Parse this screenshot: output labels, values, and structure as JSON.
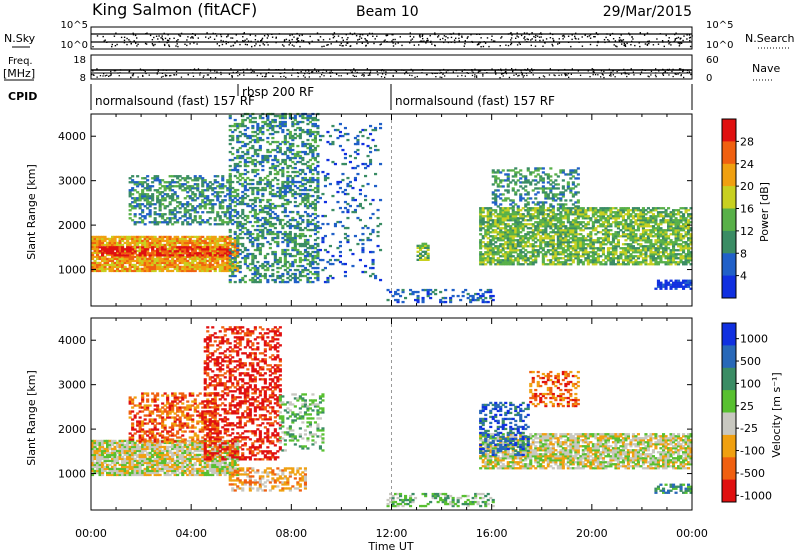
{
  "header": {
    "station": "King Salmon (fitACF)",
    "beam": "Beam 10",
    "date": "29/Mar/2015"
  },
  "strips": {
    "nsky": {
      "label": "N.Sky",
      "ticks": [
        "10^5",
        "10^0"
      ]
    },
    "nsearch": {
      "label": "N.Search",
      "ticks": [
        "10^5",
        "10^0"
      ]
    },
    "freq": {
      "label_line1": "Freq.",
      "label_line2": "[MHz]",
      "ticks": [
        "18",
        "8"
      ]
    },
    "nave": {
      "label": "Nave",
      "ticks": [
        "60",
        "0"
      ]
    },
    "cpid": {
      "label": "CPID",
      "segments": [
        {
          "text": "normalsound (fast) 157 RF",
          "start_h": 0.0
        },
        {
          "text": "rbsp 200 RF",
          "start_h": 6.0
        },
        {
          "text": "normalsound (fast) 157 RF",
          "start_h": 12.0
        }
      ]
    }
  },
  "chart_data": [
    {
      "type": "heatmap",
      "name": "power",
      "ylabel": "Slant Range [km]",
      "xlabel": "Time UT",
      "xlim_hours": [
        0,
        24
      ],
      "ylim_km": [
        180,
        4500
      ],
      "x_ticks": [
        "00:00",
        "04:00",
        "08:00",
        "12:00",
        "16:00",
        "20:00",
        "00:00"
      ],
      "y_ticks": [
        1000,
        2000,
        3000,
        4000
      ],
      "colorbar": {
        "label": "Power [dB]",
        "ticks": [
          "4",
          "8",
          "12",
          "16",
          "20",
          "24",
          "28"
        ],
        "colors": [
          "#1030e0",
          "#2060c8",
          "#3a8c64",
          "#58b048",
          "#c8d020",
          "#f0a010",
          "#f06010",
          "#e01010"
        ]
      },
      "regions": [
        {
          "t0": 0.0,
          "t1": 5.8,
          "r0": 950,
          "r1": 1750,
          "level": 5,
          "density": 0.85
        },
        {
          "t0": 0.3,
          "t1": 5.5,
          "r0": 1300,
          "r1": 1500,
          "level": 7,
          "density": 0.6
        },
        {
          "t0": 1.5,
          "t1": 5.5,
          "r0": 2000,
          "r1": 3100,
          "level": 2,
          "density": 0.5
        },
        {
          "t0": 5.5,
          "t1": 9.0,
          "r0": 700,
          "r1": 4500,
          "level": 2,
          "density": 0.45
        },
        {
          "t0": 9.0,
          "t1": 11.5,
          "r0": 700,
          "r1": 4300,
          "level": 1,
          "density": 0.12
        },
        {
          "t0": 13.0,
          "t1": 13.4,
          "r0": 1200,
          "r1": 1600,
          "level": 3,
          "density": 0.7
        },
        {
          "t0": 11.8,
          "t1": 16.0,
          "r0": 250,
          "r1": 550,
          "level": 1,
          "density": 0.35
        },
        {
          "t0": 15.5,
          "t1": 24.0,
          "r0": 1100,
          "r1": 2400,
          "level": 3,
          "density": 0.75
        },
        {
          "t0": 16.0,
          "t1": 19.5,
          "r0": 2400,
          "r1": 3300,
          "level": 2,
          "density": 0.4
        },
        {
          "t0": 22.5,
          "t1": 24.0,
          "r0": 550,
          "r1": 750,
          "level": 0,
          "density": 0.7
        }
      ]
    },
    {
      "type": "heatmap",
      "name": "velocity",
      "ylabel": "Slant Range [km]",
      "xlabel": "Time UT",
      "xlim_hours": [
        0,
        24
      ],
      "ylim_km": [
        180,
        4500
      ],
      "x_ticks": [
        "00:00",
        "04:00",
        "08:00",
        "12:00",
        "16:00",
        "20:00",
        "00:00"
      ],
      "y_ticks": [
        1000,
        2000,
        3000,
        4000
      ],
      "colorbar": {
        "label": "Velocity [m s⁻¹]",
        "ticks": [
          "1000",
          "500",
          "100",
          "25",
          "-25",
          "-100",
          "-500",
          "-1000"
        ],
        "colors": [
          "#1030e0",
          "#2868b8",
          "#3a8c64",
          "#58c030",
          "#c8c8c0",
          "#f0a010",
          "#f06010",
          "#e01010"
        ]
      },
      "regions": [
        {
          "t0": 0.0,
          "t1": 5.8,
          "r0": 950,
          "r1": 1750,
          "level": 4,
          "density": 0.85
        },
        {
          "t0": 1.5,
          "t1": 5.0,
          "r0": 1700,
          "r1": 2800,
          "level": 6,
          "density": 0.5
        },
        {
          "t0": 4.5,
          "t1": 7.5,
          "r0": 1300,
          "r1": 4300,
          "level": 7,
          "density": 0.45
        },
        {
          "t0": 5.5,
          "t1": 8.5,
          "r0": 600,
          "r1": 1100,
          "level": 5,
          "density": 0.45
        },
        {
          "t0": 7.5,
          "t1": 9.2,
          "r0": 1500,
          "r1": 2800,
          "level": 3,
          "density": 0.35
        },
        {
          "t0": 11.8,
          "t1": 16.0,
          "r0": 250,
          "r1": 550,
          "level": 3,
          "density": 0.4
        },
        {
          "t0": 15.5,
          "t1": 24.0,
          "r0": 1100,
          "r1": 1900,
          "level": 4,
          "density": 0.75
        },
        {
          "t0": 15.5,
          "t1": 17.5,
          "r0": 1400,
          "r1": 2600,
          "level": 1,
          "density": 0.4
        },
        {
          "t0": 17.5,
          "t1": 19.5,
          "r0": 2500,
          "r1": 3300,
          "level": 6,
          "density": 0.4
        },
        {
          "t0": 22.5,
          "t1": 24.0,
          "r0": 550,
          "r1": 750,
          "level": 2,
          "density": 0.6
        }
      ]
    }
  ]
}
